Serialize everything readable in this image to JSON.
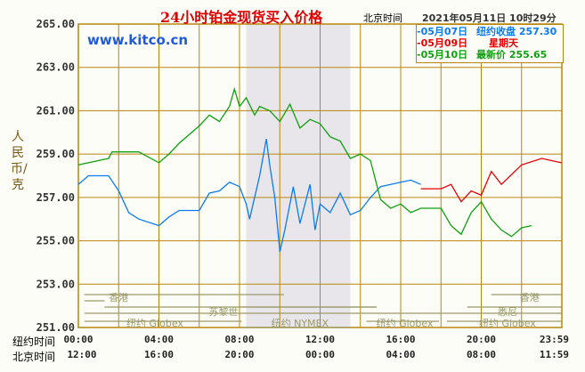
{
  "header": {
    "title": "24小时铂金现货买入价格",
    "beijing_label": "北京时间",
    "timestamp": "2021年05月11日 10时29分",
    "site": "www.kitco.cn"
  },
  "legend": [
    {
      "date": "-05月07日",
      "label": "纽约收盘",
      "value": "257.30",
      "color": "#0a7cf0"
    },
    {
      "date": "-05月09日",
      "label": "星期天",
      "value": "",
      "color": "#e80000"
    },
    {
      "date": "-05月10日",
      "label": "最新价",
      "value": "255.65",
      "color": "#10a010"
    }
  ],
  "colors": {
    "grid": "#b8860b",
    "shade": "#e8e6ea",
    "session": "#9a9a6a"
  },
  "sessions": {
    "hk": "香港",
    "zurich": "苏黎世",
    "globex": "纽约 Globex",
    "nymex": "纽约 NYMEX",
    "sydney": "悉尼"
  },
  "chart_data": {
    "type": "line",
    "title": "24小时铂金现货买入价格",
    "ylabel": "人民币/克",
    "ylim": [
      251,
      265
    ],
    "yticks": [
      "265.00",
      "263.00",
      "261.00",
      "259.00",
      "257.00",
      "255.00",
      "253.00",
      "251.00"
    ],
    "xlim": [
      0,
      24
    ],
    "x_row1_label": "纽约时间",
    "x_row1": [
      "00:00",
      "04:00",
      "08:00",
      "12:00",
      "16:00",
      "20:00",
      "23:59"
    ],
    "x_row2_label": "北京时间",
    "x_row2": [
      "12:00",
      "16:00",
      "20:00",
      "00:00",
      "04:00",
      "08:00",
      "11:59"
    ],
    "series": [
      {
        "name": "05月07日",
        "color": "#0a7cf0",
        "x": [
          0,
          0.5,
          1.5,
          2,
          2.5,
          3,
          4,
          4.5,
          5,
          6,
          6.5,
          7,
          7.5,
          8,
          8.33,
          8.5,
          9,
          9.33,
          9.5,
          9.75,
          10,
          10.25,
          10.67,
          11,
          11.5,
          11.75,
          12,
          12.5,
          13,
          13.5,
          14,
          14.5,
          15,
          15.5,
          16,
          16.5,
          17
        ],
        "y": [
          257.6,
          258.0,
          258.0,
          257.3,
          256.3,
          256.0,
          255.7,
          256.1,
          256.4,
          256.4,
          257.2,
          257.3,
          257.7,
          257.5,
          256.7,
          256.0,
          258.0,
          259.7,
          258.5,
          257.0,
          254.5,
          255.5,
          257.5,
          255.8,
          257.6,
          255.5,
          256.7,
          256.3,
          257.2,
          256.2,
          256.4,
          257.0,
          257.5,
          257.6,
          257.7,
          257.8,
          257.6
        ]
      },
      {
        "name": "05月09日",
        "color": "#e80000",
        "x": [
          17,
          18,
          18.5,
          19,
          19.5,
          20,
          20.5,
          21,
          22,
          23,
          23.98
        ],
        "y": [
          257.4,
          257.4,
          257.6,
          256.8,
          257.3,
          257.1,
          258.2,
          257.6,
          258.5,
          258.8,
          258.6
        ]
      },
      {
        "name": "05月10日",
        "color": "#10a010",
        "x": [
          0,
          1.5,
          1.67,
          3,
          4,
          4.5,
          5,
          6,
          6.5,
          7,
          7.5,
          7.75,
          8,
          8.33,
          8.75,
          9,
          9.5,
          10,
          10.5,
          11,
          11.5,
          12,
          12.5,
          13,
          13.5,
          14,
          14.5,
          15,
          15.5,
          16,
          16.5,
          17,
          18,
          18.5,
          19,
          19.5,
          20,
          20.5,
          21,
          21.5,
          22,
          22.5
        ],
        "y": [
          258.5,
          258.8,
          259.1,
          259.1,
          258.6,
          259.0,
          259.5,
          260.3,
          260.8,
          260.5,
          261.2,
          262.0,
          261.2,
          261.6,
          260.8,
          261.2,
          261.0,
          260.5,
          261.3,
          260.2,
          260.6,
          260.4,
          259.8,
          259.6,
          258.8,
          259.0,
          258.7,
          256.9,
          256.5,
          256.7,
          256.3,
          256.5,
          256.5,
          255.7,
          255.3,
          256.3,
          256.8,
          256.0,
          255.5,
          255.2,
          255.6,
          255.7
        ]
      }
    ]
  }
}
